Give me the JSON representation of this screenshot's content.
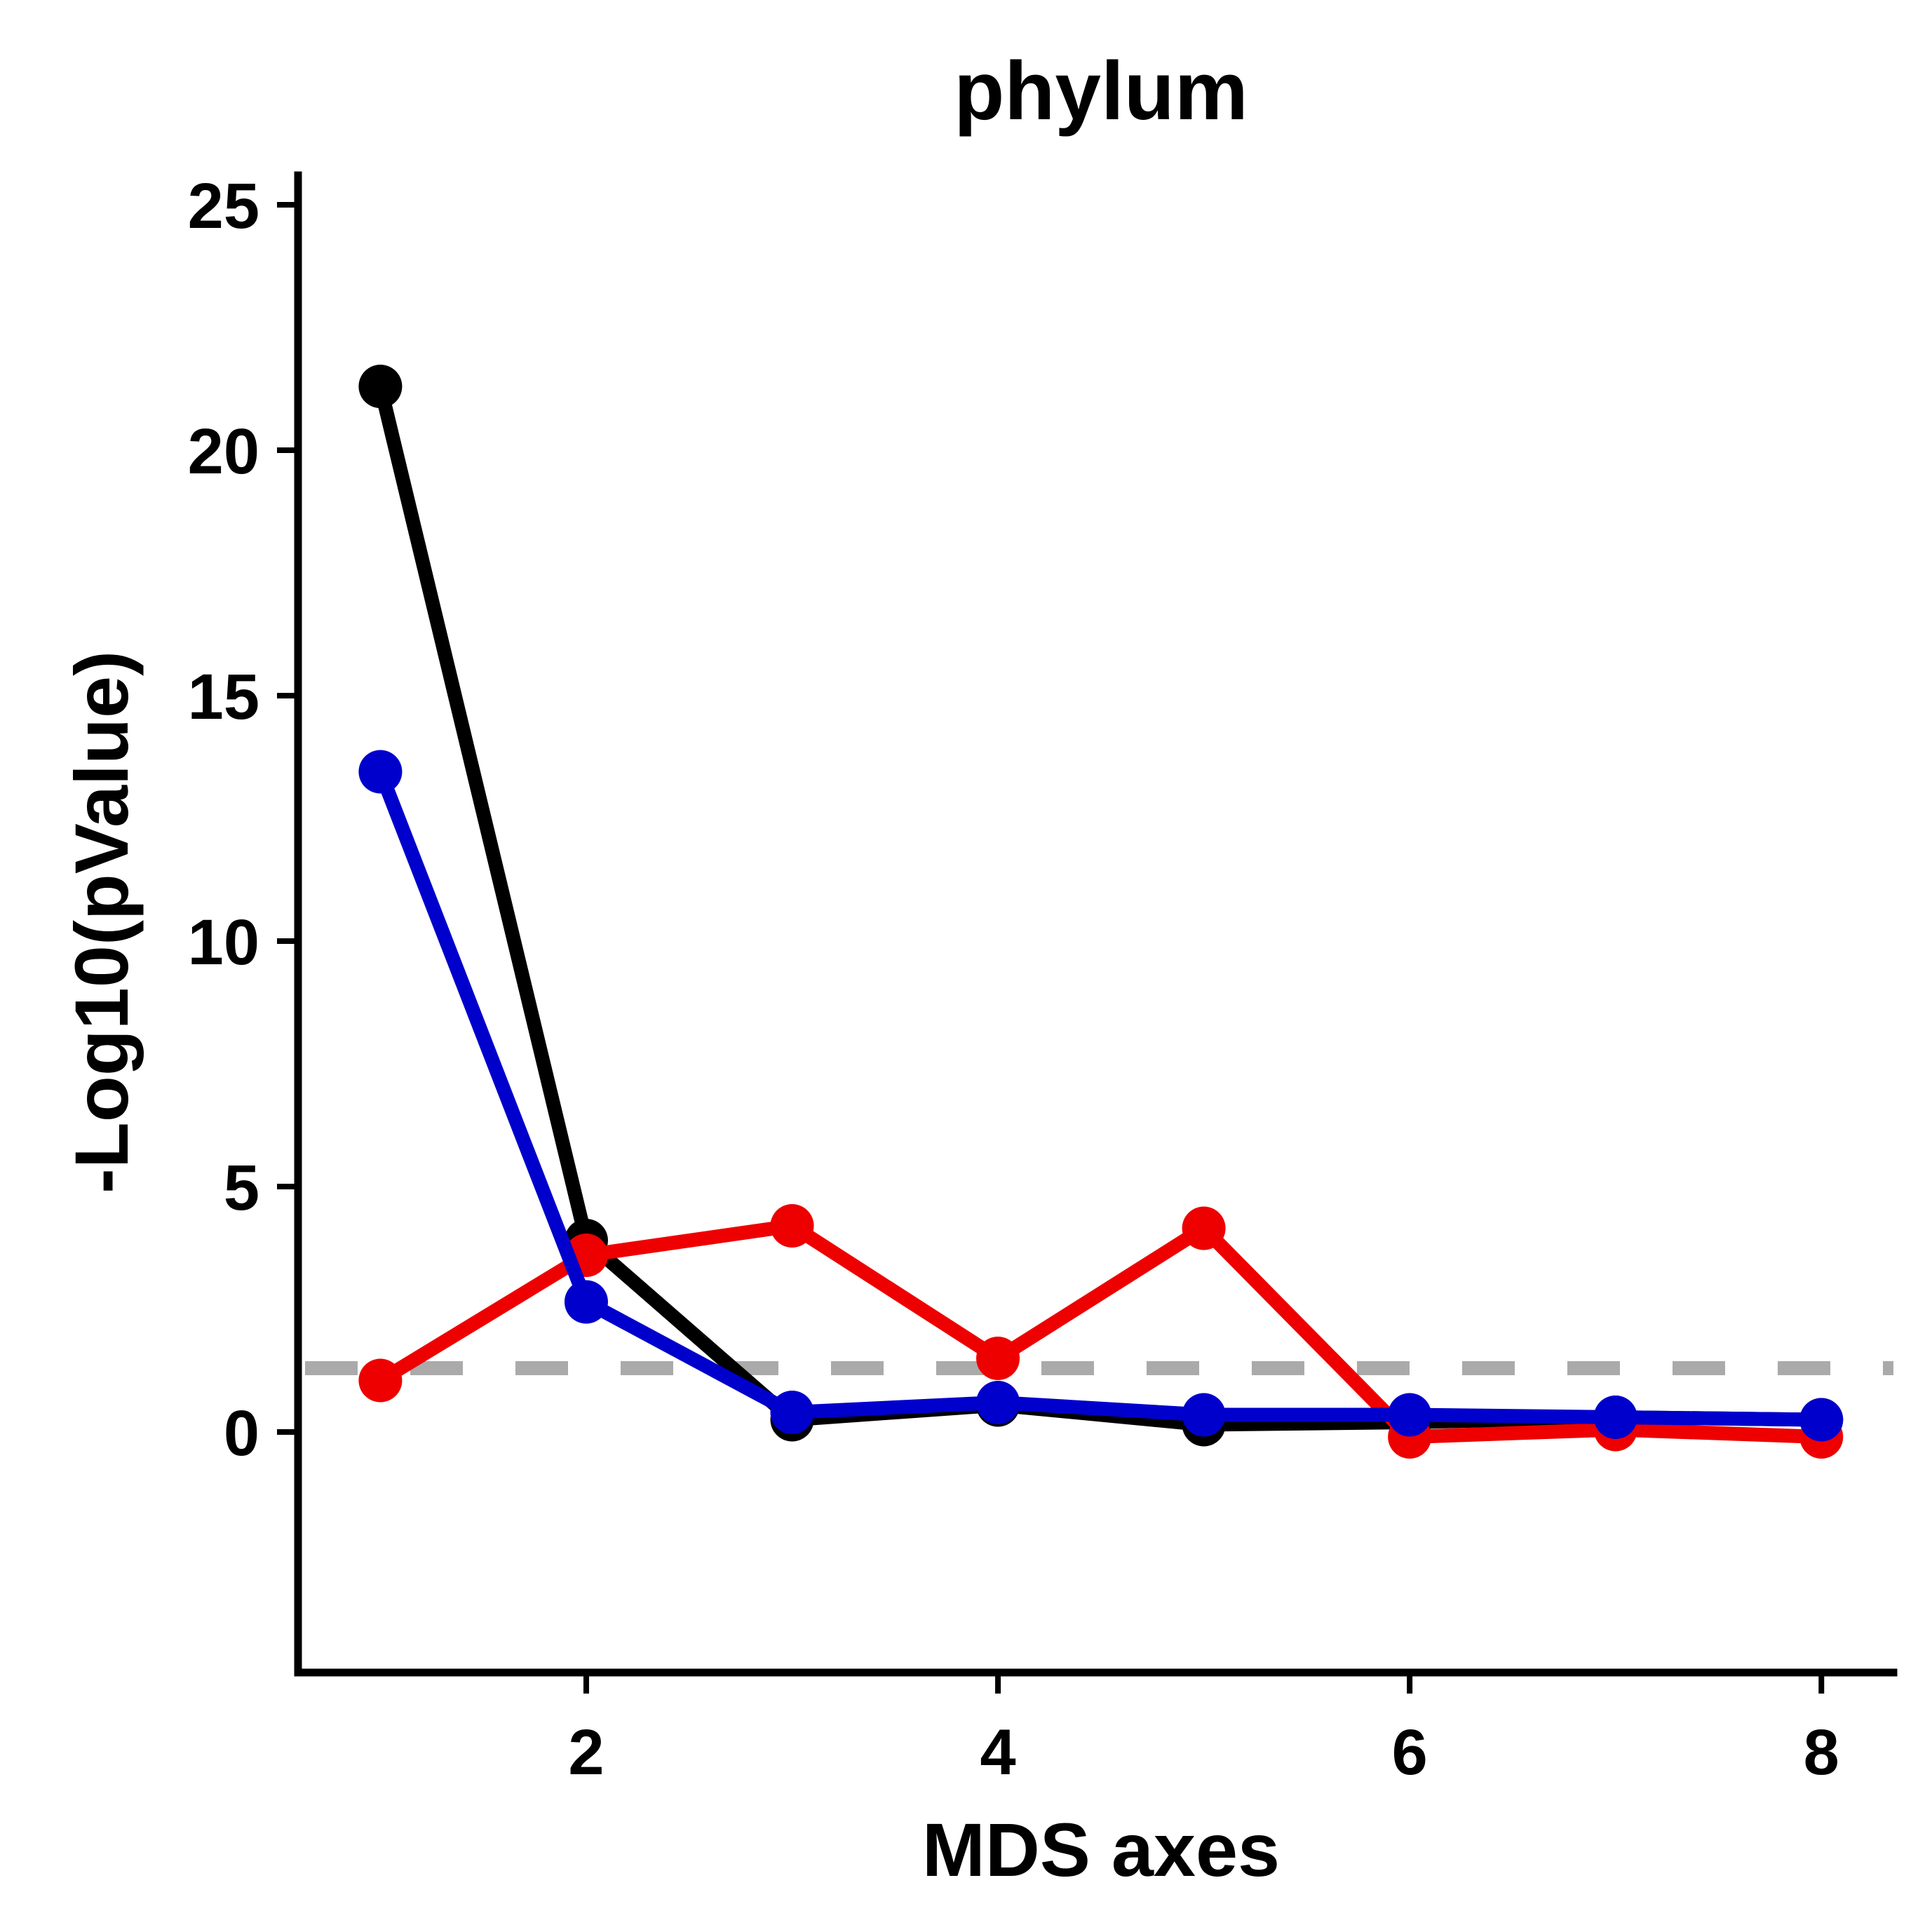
{
  "chart_data": {
    "type": "line",
    "title": "phylum",
    "xlabel": "MDS axes",
    "ylabel": "-Log10(pValue)",
    "x": [
      1,
      2,
      3,
      4,
      5,
      6,
      7,
      8
    ],
    "xlim": [
      0.6,
      8.35
    ],
    "ylim": [
      -4.9,
      25.6
    ],
    "xticks": [
      2,
      4,
      6,
      8
    ],
    "yticks": [
      0,
      5,
      10,
      15,
      20,
      25
    ],
    "reference_line": {
      "y": 1.3,
      "style": "dashed",
      "color": "#aaaaaa"
    },
    "series": [
      {
        "color": "#000000",
        "values": [
          21.3,
          3.9,
          0.25,
          0.55,
          0.15,
          0.2,
          0.3,
          0.25
        ]
      },
      {
        "color": "#ee0000",
        "values": [
          1.05,
          3.6,
          4.2,
          1.5,
          4.15,
          -0.1,
          0.05,
          -0.1
        ]
      },
      {
        "color": "#0000cc",
        "values": [
          13.45,
          2.65,
          0.4,
          0.6,
          0.35,
          0.35,
          0.3,
          0.25
        ]
      }
    ],
    "grid": false,
    "legend": "none"
  }
}
